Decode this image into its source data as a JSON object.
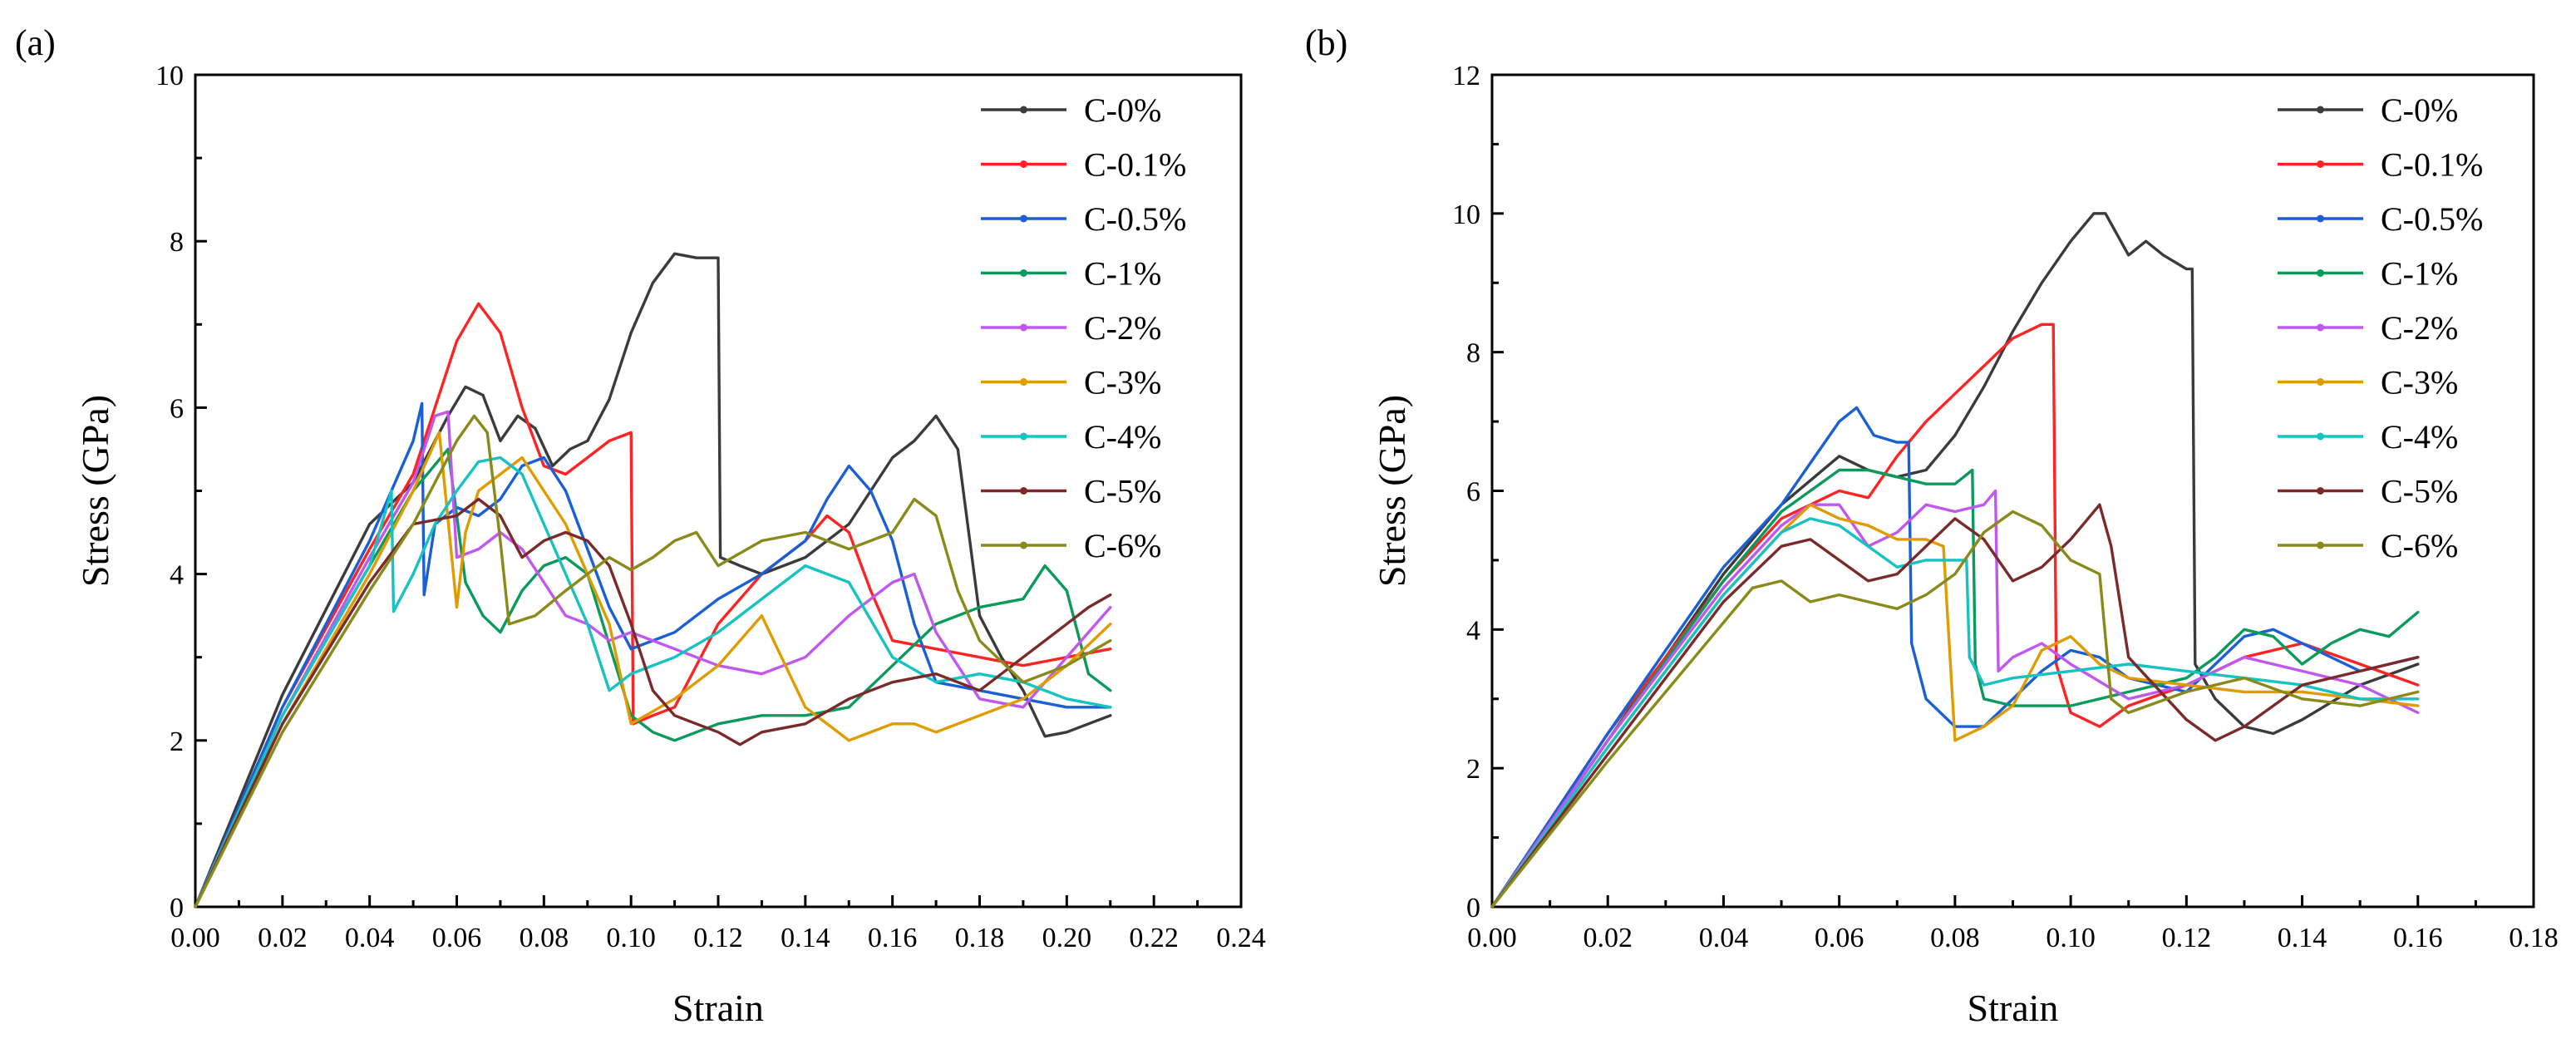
{
  "palette": {
    "C-0%": "#3b3b3b",
    "C-0.1%": "#ff2424",
    "C-0.5%": "#1a5fd6",
    "C-1%": "#0a9a5c",
    "C-2%": "#c058f0",
    "C-3%": "#e09b00",
    "C-4%": "#16c2c2",
    "C-5%": "#7a2a2a",
    "C-6%": "#8a8a1a"
  },
  "chart_data": [
    {
      "panel_label": "(a)",
      "type": "line",
      "xlabel": "Strain",
      "ylabel": "Stress (GPa)",
      "xlim": [
        0,
        0.24
      ],
      "ylim": [
        0,
        10
      ],
      "xticks": [
        "0.00",
        "0.02",
        "0.04",
        "0.06",
        "0.08",
        "0.10",
        "0.12",
        "0.14",
        "0.16",
        "0.18",
        "0.20",
        "0.22",
        "0.24"
      ],
      "yticks": [
        "0",
        "2",
        "4",
        "6",
        "8",
        "10"
      ],
      "legend_position": "top-right",
      "series": [
        {
          "name": "C-0%",
          "x": [
            0,
            0.02,
            0.04,
            0.05,
            0.058,
            0.062,
            0.066,
            0.07,
            0.074,
            0.078,
            0.082,
            0.086,
            0.09,
            0.095,
            0.1,
            0.105,
            0.11,
            0.115,
            0.12,
            0.1205,
            0.125,
            0.13,
            0.14,
            0.15,
            0.16,
            0.165,
            0.17,
            0.175,
            0.18,
            0.185,
            0.19,
            0.195,
            0.2,
            0.205,
            0.21
          ],
          "y": [
            0,
            2.55,
            4.6,
            5.1,
            5.9,
            6.25,
            6.15,
            5.6,
            5.9,
            5.75,
            5.3,
            5.5,
            5.6,
            6.1,
            6.9,
            7.5,
            7.85,
            7.8,
            7.8,
            4.2,
            4.1,
            4.0,
            4.2,
            4.6,
            5.4,
            5.6,
            5.9,
            5.5,
            3.5,
            3.0,
            2.6,
            2.05,
            2.1,
            2.2,
            2.3
          ]
        },
        {
          "name": "C-0.1%",
          "x": [
            0,
            0.02,
            0.04,
            0.05,
            0.055,
            0.06,
            0.065,
            0.07,
            0.075,
            0.08,
            0.085,
            0.09,
            0.095,
            0.1,
            0.1005,
            0.105,
            0.11,
            0.12,
            0.13,
            0.14,
            0.145,
            0.15,
            0.155,
            0.16,
            0.17,
            0.18,
            0.19,
            0.2,
            0.21
          ],
          "y": [
            0,
            2.4,
            4.3,
            5.2,
            6.0,
            6.8,
            7.25,
            6.9,
            6.0,
            5.3,
            5.2,
            5.4,
            5.6,
            5.7,
            2.2,
            2.3,
            2.4,
            3.4,
            4.0,
            4.4,
            4.7,
            4.5,
            3.8,
            3.2,
            3.1,
            3.0,
            2.9,
            3.0,
            3.1
          ]
        },
        {
          "name": "C-0.5%",
          "x": [
            0,
            0.02,
            0.04,
            0.05,
            0.052,
            0.0525,
            0.055,
            0.06,
            0.065,
            0.07,
            0.075,
            0.08,
            0.085,
            0.09,
            0.095,
            0.1,
            0.11,
            0.12,
            0.13,
            0.14,
            0.145,
            0.15,
            0.155,
            0.16,
            0.165,
            0.17,
            0.18,
            0.19,
            0.2,
            0.21
          ],
          "y": [
            0,
            2.4,
            4.4,
            5.6,
            6.05,
            3.75,
            4.6,
            4.8,
            4.7,
            4.9,
            5.3,
            5.4,
            5.0,
            4.3,
            3.6,
            3.1,
            3.3,
            3.7,
            4.0,
            4.4,
            4.9,
            5.3,
            5.0,
            4.4,
            3.4,
            2.7,
            2.6,
            2.5,
            2.4,
            2.4
          ]
        },
        {
          "name": "C-1%",
          "x": [
            0,
            0.02,
            0.04,
            0.05,
            0.058,
            0.062,
            0.066,
            0.07,
            0.075,
            0.08,
            0.085,
            0.09,
            0.1,
            0.105,
            0.11,
            0.12,
            0.13,
            0.14,
            0.15,
            0.16,
            0.17,
            0.18,
            0.19,
            0.195,
            0.2,
            0.205,
            0.21
          ],
          "y": [
            0,
            2.3,
            4.1,
            5.0,
            5.5,
            3.9,
            3.5,
            3.3,
            3.8,
            4.1,
            4.2,
            4.0,
            2.3,
            2.1,
            2.0,
            2.2,
            2.3,
            2.3,
            2.4,
            2.9,
            3.4,
            3.6,
            3.7,
            4.1,
            3.8,
            2.8,
            2.6
          ]
        },
        {
          "name": "C-2%",
          "x": [
            0,
            0.02,
            0.04,
            0.05,
            0.055,
            0.058,
            0.06,
            0.065,
            0.07,
            0.075,
            0.08,
            0.085,
            0.09,
            0.095,
            0.1,
            0.11,
            0.12,
            0.13,
            0.14,
            0.15,
            0.16,
            0.165,
            0.17,
            0.18,
            0.19,
            0.2,
            0.21
          ],
          "y": [
            0,
            2.3,
            4.2,
            5.1,
            5.9,
            5.95,
            4.2,
            4.3,
            4.5,
            4.3,
            3.9,
            3.5,
            3.4,
            3.2,
            3.3,
            3.1,
            2.9,
            2.8,
            3.0,
            3.5,
            3.9,
            4.0,
            3.3,
            2.5,
            2.4,
            3.0,
            3.6
          ]
        },
        {
          "name": "C-3%",
          "x": [
            0,
            0.02,
            0.04,
            0.05,
            0.056,
            0.06,
            0.062,
            0.065,
            0.07,
            0.075,
            0.08,
            0.085,
            0.09,
            0.095,
            0.1,
            0.11,
            0.12,
            0.13,
            0.14,
            0.15,
            0.16,
            0.165,
            0.17,
            0.18,
            0.19,
            0.2,
            0.21
          ],
          "y": [
            0,
            2.2,
            4.0,
            5.0,
            5.7,
            3.6,
            4.5,
            5.0,
            5.2,
            5.4,
            5.0,
            4.6,
            4.0,
            3.4,
            2.2,
            2.5,
            2.9,
            3.5,
            2.4,
            2.0,
            2.2,
            2.2,
            2.1,
            2.3,
            2.5,
            2.9,
            3.4
          ]
        },
        {
          "name": "C-4%",
          "x": [
            0,
            0.02,
            0.04,
            0.045,
            0.0455,
            0.05,
            0.055,
            0.06,
            0.065,
            0.07,
            0.075,
            0.08,
            0.085,
            0.09,
            0.095,
            0.1,
            0.11,
            0.12,
            0.13,
            0.14,
            0.15,
            0.16,
            0.17,
            0.18,
            0.19,
            0.2,
            0.21
          ],
          "y": [
            0,
            2.3,
            4.1,
            5.0,
            3.55,
            4.0,
            4.6,
            5.0,
            5.35,
            5.4,
            5.2,
            4.6,
            4.0,
            3.4,
            2.6,
            2.8,
            3.0,
            3.3,
            3.7,
            4.1,
            3.9,
            3.0,
            2.7,
            2.8,
            2.7,
            2.5,
            2.4
          ]
        },
        {
          "name": "C-5%",
          "x": [
            0,
            0.02,
            0.04,
            0.05,
            0.06,
            0.065,
            0.07,
            0.075,
            0.08,
            0.085,
            0.09,
            0.095,
            0.1,
            0.105,
            0.11,
            0.12,
            0.125,
            0.13,
            0.14,
            0.15,
            0.16,
            0.17,
            0.18,
            0.19,
            0.2,
            0.205,
            0.21
          ],
          "y": [
            0,
            2.2,
            3.9,
            4.6,
            4.7,
            4.9,
            4.7,
            4.2,
            4.4,
            4.5,
            4.4,
            4.1,
            3.4,
            2.6,
            2.3,
            2.1,
            1.95,
            2.1,
            2.2,
            2.5,
            2.7,
            2.8,
            2.6,
            3.0,
            3.4,
            3.6,
            3.75
          ]
        },
        {
          "name": "C-6%",
          "x": [
            0,
            0.02,
            0.04,
            0.05,
            0.06,
            0.064,
            0.067,
            0.07,
            0.072,
            0.078,
            0.085,
            0.09,
            0.095,
            0.1,
            0.105,
            0.11,
            0.115,
            0.12,
            0.13,
            0.14,
            0.15,
            0.16,
            0.165,
            0.17,
            0.175,
            0.18,
            0.19,
            0.2,
            0.21
          ],
          "y": [
            0,
            2.1,
            3.8,
            4.6,
            5.6,
            5.9,
            5.7,
            4.4,
            3.4,
            3.5,
            3.8,
            4.0,
            4.2,
            4.05,
            4.2,
            4.4,
            4.5,
            4.1,
            4.4,
            4.5,
            4.3,
            4.5,
            4.9,
            4.7,
            3.8,
            3.2,
            2.7,
            2.9,
            3.2
          ]
        }
      ]
    },
    {
      "panel_label": "(b)",
      "type": "line",
      "xlabel": "Strain",
      "ylabel": "Stress (GPa)",
      "xlim": [
        0,
        0.18
      ],
      "ylim": [
        0,
        12
      ],
      "xticks": [
        "0.00",
        "0.02",
        "0.04",
        "0.06",
        "0.08",
        "0.10",
        "0.12",
        "0.14",
        "0.16",
        "0.18"
      ],
      "yticks": [
        "0",
        "2",
        "4",
        "6",
        "8",
        "10",
        "12"
      ],
      "legend_position": "top-right",
      "series": [
        {
          "name": "C-0%",
          "x": [
            0,
            0.02,
            0.04,
            0.05,
            0.06,
            0.065,
            0.07,
            0.075,
            0.08,
            0.085,
            0.09,
            0.095,
            0.1,
            0.104,
            0.106,
            0.11,
            0.113,
            0.116,
            0.12,
            0.121,
            0.1215,
            0.125,
            0.13,
            0.135,
            0.14,
            0.15,
            0.16
          ],
          "y": [
            0,
            2.4,
            4.8,
            5.8,
            6.5,
            6.3,
            6.2,
            6.3,
            6.8,
            7.5,
            8.3,
            9.0,
            9.6,
            10.0,
            10.0,
            9.4,
            9.6,
            9.4,
            9.2,
            9.2,
            3.5,
            3.0,
            2.6,
            2.5,
            2.7,
            3.2,
            3.5
          ]
        },
        {
          "name": "C-0.1%",
          "x": [
            0,
            0.02,
            0.04,
            0.05,
            0.06,
            0.065,
            0.07,
            0.075,
            0.08,
            0.085,
            0.09,
            0.095,
            0.097,
            0.0975,
            0.1,
            0.105,
            0.11,
            0.12,
            0.13,
            0.14,
            0.15,
            0.16
          ],
          "y": [
            0,
            2.5,
            4.7,
            5.6,
            6.0,
            5.9,
            6.5,
            7.0,
            7.4,
            7.8,
            8.2,
            8.4,
            8.4,
            3.5,
            2.8,
            2.6,
            2.9,
            3.2,
            3.6,
            3.8,
            3.5,
            3.2
          ]
        },
        {
          "name": "C-0.5%",
          "x": [
            0,
            0.02,
            0.04,
            0.05,
            0.055,
            0.06,
            0.063,
            0.066,
            0.07,
            0.072,
            0.0725,
            0.075,
            0.08,
            0.085,
            0.09,
            0.095,
            0.1,
            0.105,
            0.11,
            0.12,
            0.13,
            0.135,
            0.14,
            0.15,
            0.16
          ],
          "y": [
            0,
            2.5,
            4.9,
            5.8,
            6.4,
            7.0,
            7.2,
            6.8,
            6.7,
            6.7,
            3.8,
            3.0,
            2.6,
            2.6,
            3.0,
            3.4,
            3.7,
            3.6,
            3.3,
            3.1,
            3.9,
            4.0,
            3.8,
            3.4,
            3.6
          ]
        },
        {
          "name": "C-1%",
          "x": [
            0,
            0.02,
            0.04,
            0.05,
            0.055,
            0.06,
            0.065,
            0.07,
            0.075,
            0.08,
            0.083,
            0.0835,
            0.085,
            0.09,
            0.1,
            0.11,
            0.12,
            0.125,
            0.13,
            0.135,
            0.14,
            0.145,
            0.15,
            0.155,
            0.16
          ],
          "y": [
            0,
            2.4,
            4.7,
            5.7,
            6.0,
            6.3,
            6.3,
            6.2,
            6.1,
            6.1,
            6.3,
            3.5,
            3.0,
            2.9,
            2.9,
            3.1,
            3.3,
            3.6,
            4.0,
            3.9,
            3.5,
            3.8,
            4.0,
            3.9,
            4.25
          ]
        },
        {
          "name": "C-2%",
          "x": [
            0,
            0.02,
            0.04,
            0.05,
            0.055,
            0.06,
            0.065,
            0.07,
            0.075,
            0.08,
            0.085,
            0.087,
            0.0875,
            0.09,
            0.095,
            0.1,
            0.11,
            0.12,
            0.13,
            0.14,
            0.15,
            0.16
          ],
          "y": [
            0,
            2.4,
            4.6,
            5.5,
            5.8,
            5.8,
            5.2,
            5.4,
            5.8,
            5.7,
            5.8,
            6.0,
            3.4,
            3.6,
            3.8,
            3.5,
            3.0,
            3.2,
            3.6,
            3.4,
            3.2,
            2.8
          ]
        },
        {
          "name": "C-3%",
          "x": [
            0,
            0.02,
            0.04,
            0.05,
            0.055,
            0.06,
            0.065,
            0.07,
            0.075,
            0.078,
            0.08,
            0.085,
            0.09,
            0.095,
            0.1,
            0.105,
            0.11,
            0.12,
            0.13,
            0.14,
            0.15,
            0.16
          ],
          "y": [
            0,
            2.3,
            4.5,
            5.4,
            5.8,
            5.6,
            5.5,
            5.3,
            5.3,
            5.2,
            2.4,
            2.6,
            2.9,
            3.7,
            3.9,
            3.5,
            3.3,
            3.2,
            3.1,
            3.1,
            3.0,
            2.9
          ]
        },
        {
          "name": "C-4%",
          "x": [
            0,
            0.02,
            0.04,
            0.05,
            0.055,
            0.06,
            0.065,
            0.07,
            0.075,
            0.08,
            0.082,
            0.0825,
            0.085,
            0.09,
            0.1,
            0.11,
            0.12,
            0.13,
            0.14,
            0.15,
            0.16
          ],
          "y": [
            0,
            2.3,
            4.5,
            5.4,
            5.6,
            5.5,
            5.2,
            4.9,
            5.0,
            5.0,
            5.0,
            3.6,
            3.2,
            3.3,
            3.4,
            3.5,
            3.4,
            3.3,
            3.2,
            3.0,
            3.0
          ]
        },
        {
          "name": "C-5%",
          "x": [
            0,
            0.02,
            0.04,
            0.05,
            0.055,
            0.06,
            0.065,
            0.07,
            0.075,
            0.08,
            0.085,
            0.09,
            0.095,
            0.1,
            0.105,
            0.107,
            0.11,
            0.12,
            0.125,
            0.13,
            0.14,
            0.15,
            0.16
          ],
          "y": [
            0,
            2.2,
            4.4,
            5.2,
            5.3,
            5.0,
            4.7,
            4.8,
            5.2,
            5.6,
            5.3,
            4.7,
            4.9,
            5.3,
            5.8,
            5.2,
            3.6,
            2.7,
            2.4,
            2.6,
            3.2,
            3.4,
            3.6
          ]
        },
        {
          "name": "C-6%",
          "x": [
            0,
            0.02,
            0.04,
            0.045,
            0.05,
            0.055,
            0.06,
            0.065,
            0.07,
            0.075,
            0.08,
            0.085,
            0.09,
            0.095,
            0.1,
            0.105,
            0.107,
            0.11,
            0.12,
            0.13,
            0.14,
            0.15,
            0.16
          ],
          "y": [
            0,
            2.1,
            4.1,
            4.6,
            4.7,
            4.4,
            4.5,
            4.4,
            4.3,
            4.5,
            4.8,
            5.4,
            5.7,
            5.5,
            5.0,
            4.8,
            3.0,
            2.8,
            3.1,
            3.3,
            3.0,
            2.9,
            3.1
          ]
        }
      ]
    }
  ]
}
